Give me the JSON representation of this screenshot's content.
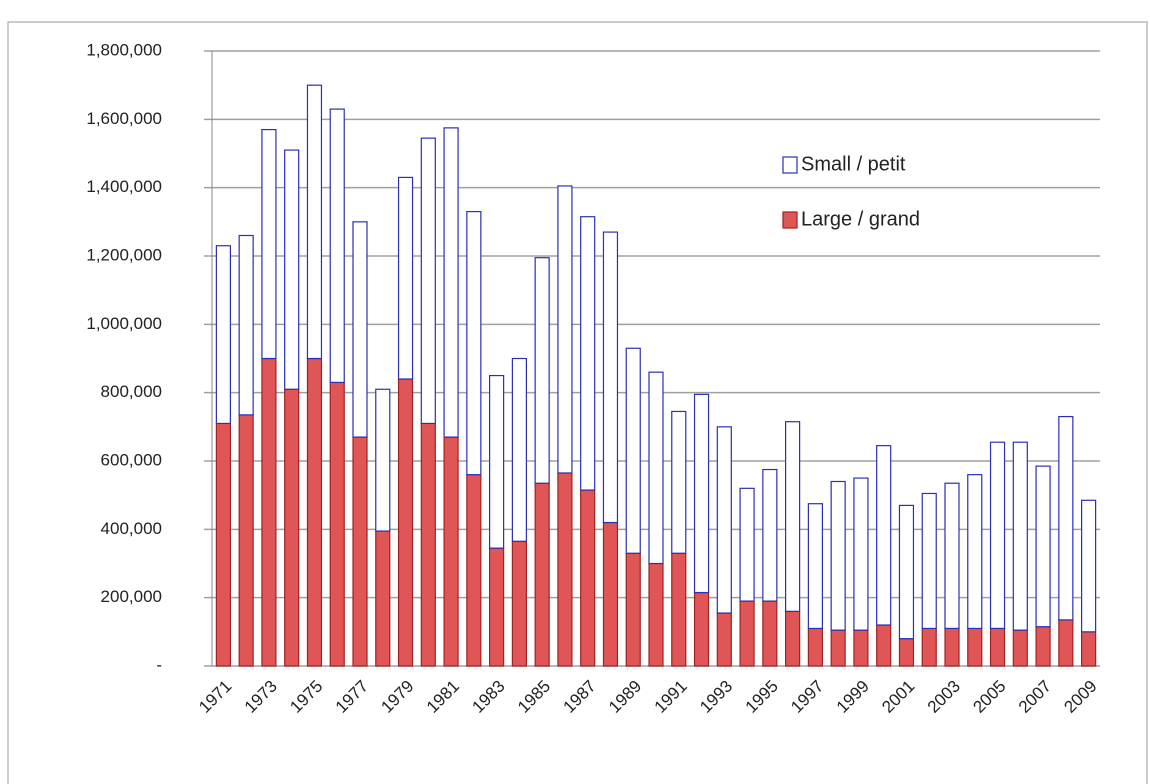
{
  "chart_data": {
    "type": "stacked_bar",
    "categories": [
      "1971",
      null,
      "1973",
      null,
      "1975",
      null,
      "1977",
      null,
      "1979",
      null,
      "1981",
      null,
      "1983",
      null,
      "1985",
      null,
      "1987",
      null,
      "1989",
      null,
      "1991",
      null,
      "1993",
      null,
      "1995",
      null,
      "1997",
      null,
      "1999",
      null,
      "2001",
      null,
      "2003",
      null,
      "2005",
      null,
      "2007",
      null,
      "2009"
    ],
    "series": [
      {
        "name": "Large / grand",
        "color": "#e05555",
        "stroke": "#a02222",
        "values": [
          710000,
          735000,
          900000,
          810000,
          900000,
          830000,
          670000,
          395000,
          840000,
          710000,
          670000,
          560000,
          345000,
          365000,
          535000,
          565000,
          515000,
          420000,
          330000,
          300000,
          330000,
          215000,
          155000,
          190000,
          190000,
          160000,
          110000,
          105000,
          105000,
          120000,
          80000,
          110000,
          110000,
          110000,
          110000,
          105000,
          115000,
          135000,
          100000
        ]
      },
      {
        "name": "Small / petit",
        "color": "#ffffff",
        "stroke": "#2b30b5",
        "values": [
          520000,
          525000,
          670000,
          700000,
          800000,
          800000,
          630000,
          415000,
          590000,
          835000,
          905000,
          770000,
          505000,
          535000,
          660000,
          840000,
          800000,
          850000,
          600000,
          560000,
          415000,
          580000,
          545000,
          330000,
          385000,
          555000,
          365000,
          435000,
          445000,
          525000,
          390000,
          395000,
          425000,
          450000,
          545000,
          550000,
          470000,
          595000,
          385000
        ]
      }
    ],
    "ylim": [
      0,
      1800000
    ],
    "yticks": [
      {
        "value": 0,
        "label": "-"
      },
      {
        "value": 200000,
        "label": "200,000"
      },
      {
        "value": 400000,
        "label": "400,000"
      },
      {
        "value": 600000,
        "label": "600,000"
      },
      {
        "value": 800000,
        "label": "800,000"
      },
      {
        "value": 1000000,
        "label": "1,000,000"
      },
      {
        "value": 1200000,
        "label": "1,200,000"
      },
      {
        "value": 1400000,
        "label": "1,400,000"
      },
      {
        "value": 1600000,
        "label": "1,600,000"
      },
      {
        "value": 1800000,
        "label": "1,800,000"
      }
    ],
    "grid": true,
    "legend": "upper right"
  }
}
